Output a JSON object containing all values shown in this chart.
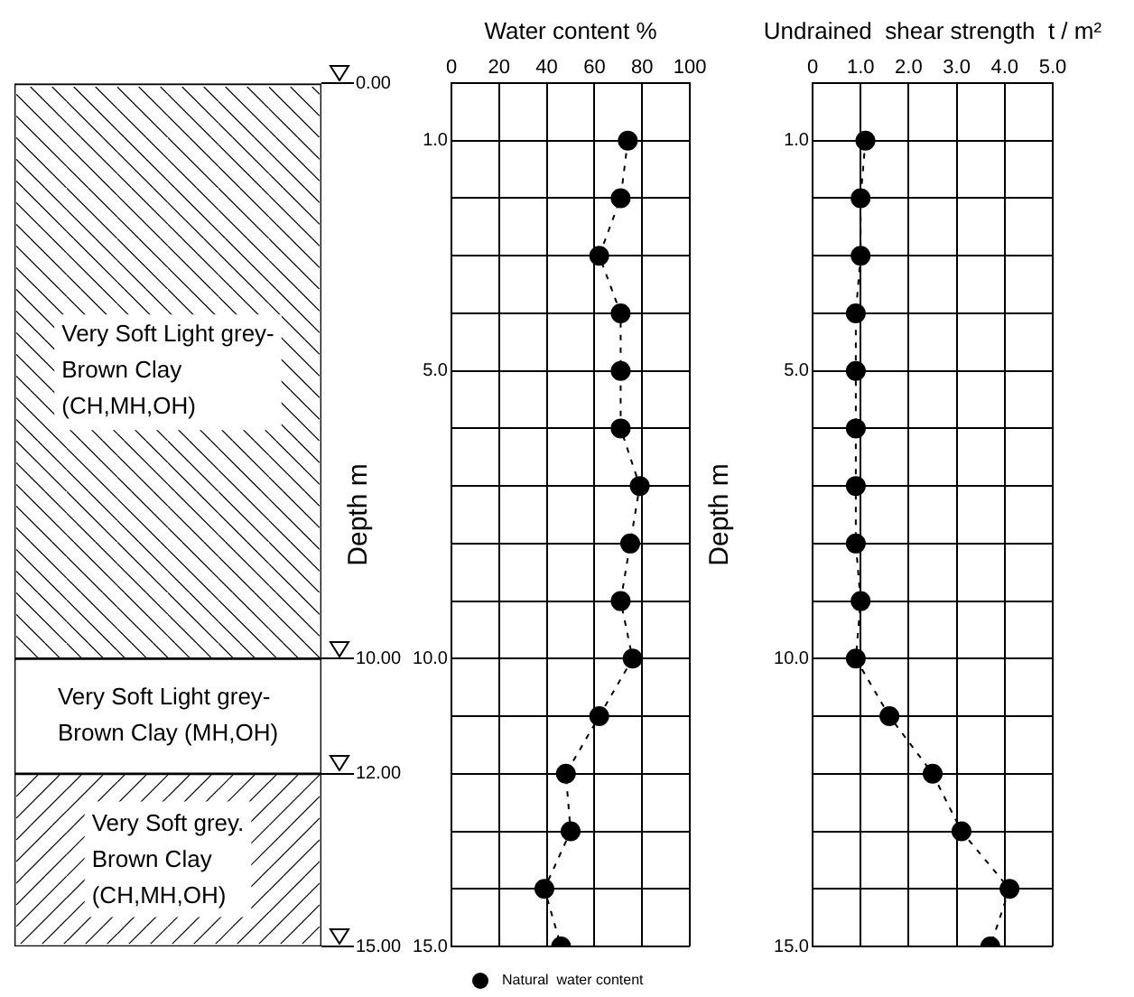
{
  "chart_data": [
    {
      "type": "bar",
      "stacked": true,
      "categories": [
        null
      ],
      "series": [
        {
          "name": "Very Soft Light grey- Brown Clay (CH,MH,OH)",
          "color": "#ffffff",
          "values": [
            10
          ]
        },
        {
          "name": "Very Soft Light grey- Brown Clay (MH,OH)",
          "color": "#ffffff",
          "values": [
            2
          ]
        },
        {
          "name": "Very Soft grey. Brown Clay (CH,MH,OH)",
          "color": "#ffffff",
          "values": [
            3
          ]
        }
      ],
      "ylim": [
        15,
        0
      ],
      "yticks": [
        {
          "value": 0,
          "label": "0.00"
        },
        {
          "value": 10,
          "label": "10.00"
        },
        {
          "value": 12,
          "label": "12.00"
        },
        {
          "value": 15,
          "label": "15.00"
        }
      ],
      "tick_labels": "y",
      "legend": false
    },
    {
      "type": "line",
      "title": "Water content %",
      "ylabel": "Depth m",
      "marker": "circle",
      "line_style": "dashed",
      "grid": true,
      "legend": "bottom",
      "series": [
        {
          "name": "Natural  water content",
          "color": "#000000",
          "x": [
            74,
            71,
            62,
            71,
            71,
            71,
            79,
            75,
            71,
            76,
            62,
            48,
            50,
            39,
            46
          ],
          "values": [
            1,
            2,
            3,
            4,
            5,
            6,
            7,
            8,
            9,
            10,
            11,
            12,
            13,
            14,
            15
          ]
        }
      ],
      "xlim": [
        0,
        100
      ],
      "xticks": [
        0,
        20,
        40,
        60,
        80,
        100
      ],
      "ylim": [
        15,
        0
      ],
      "yticks": [
        {
          "value": 0,
          "label": null
        },
        {
          "value": 1,
          "label": "1.0"
        },
        {
          "value": 2,
          "label": null
        },
        {
          "value": 3,
          "label": null
        },
        {
          "value": 4,
          "label": null
        },
        {
          "value": 5,
          "label": "5.0"
        },
        {
          "value": 6,
          "label": null
        },
        {
          "value": 7,
          "label": null
        },
        {
          "value": 8,
          "label": null
        },
        {
          "value": 9,
          "label": null
        },
        {
          "value": 10,
          "label": "10.0"
        },
        {
          "value": 11,
          "label": null
        },
        {
          "value": 12,
          "label": null
        },
        {
          "value": 13,
          "label": null
        },
        {
          "value": 14,
          "label": null
        },
        {
          "value": 15,
          "label": "15.0"
        }
      ]
    },
    {
      "type": "line",
      "title": "Undrained  shear strength  t / m²",
      "ylabel": "Depth m",
      "marker": "circle",
      "line_style": "dashed",
      "grid": true,
      "legend": false,
      "series": [
        {
          "color": "#000000",
          "x": [
            1.1,
            1.0,
            1.0,
            0.9,
            0.9,
            0.9,
            0.9,
            0.9,
            1.0,
            0.9,
            1.6,
            2.5,
            3.1,
            4.1,
            3.7
          ],
          "values": [
            1,
            2,
            3,
            4,
            5,
            6,
            7,
            8,
            9,
            10,
            11,
            12,
            13,
            14,
            15
          ]
        }
      ],
      "xlim": [
        0,
        5
      ],
      "xticks": [
        0,
        {
          "value": 1,
          "label": "1.0"
        },
        {
          "value": 2,
          "label": "2.0"
        },
        {
          "value": 3,
          "label": "3.0"
        },
        {
          "value": 4,
          "label": "4.0"
        },
        {
          "value": 5,
          "label": "5.0"
        }
      ],
      "ylim": [
        15,
        0
      ],
      "yticks": [
        {
          "value": 0,
          "label": null
        },
        {
          "value": 1,
          "label": "1.0"
        },
        {
          "value": 2,
          "label": null
        },
        {
          "value": 3,
          "label": null
        },
        {
          "value": 4,
          "label": null
        },
        {
          "value": 5,
          "label": "5.0"
        },
        {
          "value": 6,
          "label": null
        },
        {
          "value": 7,
          "label": null
        },
        {
          "value": 8,
          "label": null
        },
        {
          "value": 9,
          "label": null
        },
        {
          "value": 10,
          "label": "10.0"
        },
        {
          "value": 11,
          "label": null
        },
        {
          "value": 12,
          "label": null
        },
        {
          "value": 13,
          "label": null
        },
        {
          "value": 14,
          "label": null
        },
        {
          "value": 15,
          "label": "15.0"
        }
      ]
    }
  ]
}
